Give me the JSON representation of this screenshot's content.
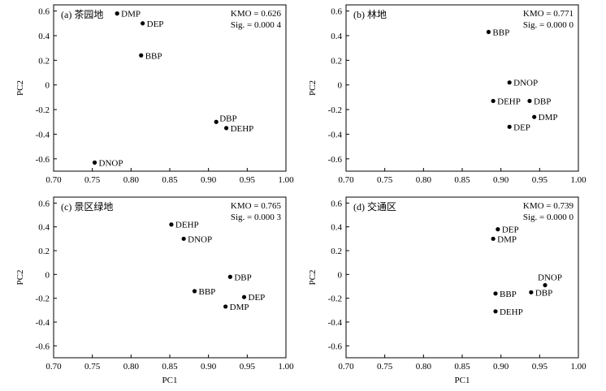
{
  "chart_data": [
    {
      "type": "scatter",
      "title": "(a) 茶园地",
      "kmo": "KMO = 0.626",
      "sig": "Sig. = 0.000 4",
      "xlabel": "",
      "ylabel": "PC2",
      "xlim": [
        0.7,
        1.0
      ],
      "ylim": [
        -0.7,
        0.65
      ],
      "xticks": [
        "0.70",
        "0.75",
        "0.80",
        "0.85",
        "0.90",
        "0.95",
        "1.00"
      ],
      "yticks": [
        "0.6",
        "0.4",
        "0.2",
        "0",
        "-0.2",
        "-0.4",
        "-0.6"
      ],
      "points": [
        {
          "label": "DMP",
          "x": 0.782,
          "y": 0.58,
          "pos": "right"
        },
        {
          "label": "DEP",
          "x": 0.815,
          "y": 0.5,
          "pos": "right"
        },
        {
          "label": "BBP",
          "x": 0.813,
          "y": 0.24,
          "pos": "right"
        },
        {
          "label": "DBP",
          "x": 0.91,
          "y": -0.3,
          "pos": "right-up"
        },
        {
          "label": "DEHP",
          "x": 0.923,
          "y": -0.35,
          "pos": "right"
        },
        {
          "label": "DNOP",
          "x": 0.753,
          "y": -0.63,
          "pos": "right"
        }
      ]
    },
    {
      "type": "scatter",
      "title": "(b) 林地",
      "kmo": "KMO = 0.771",
      "sig": "Sig. = 0.000 0",
      "xlabel": "",
      "ylabel": "PC2",
      "xlim": [
        0.7,
        1.0
      ],
      "ylim": [
        -0.7,
        0.65
      ],
      "xticks": [
        "0.70",
        "0.75",
        "0.80",
        "0.85",
        "0.90",
        "0.95",
        "1.00"
      ],
      "yticks": [
        "0.6",
        "0.4",
        "0.2",
        "0",
        "-0.2",
        "-0.4",
        "-0.6"
      ],
      "points": [
        {
          "label": "BBP",
          "x": 0.884,
          "y": 0.43,
          "pos": "right"
        },
        {
          "label": "DNOP",
          "x": 0.911,
          "y": 0.02,
          "pos": "right"
        },
        {
          "label": "DEHP",
          "x": 0.89,
          "y": -0.13,
          "pos": "right"
        },
        {
          "label": "DBP",
          "x": 0.937,
          "y": -0.13,
          "pos": "right"
        },
        {
          "label": "DMP",
          "x": 0.943,
          "y": -0.26,
          "pos": "right"
        },
        {
          "label": "DEP",
          "x": 0.911,
          "y": -0.34,
          "pos": "right"
        }
      ]
    },
    {
      "type": "scatter",
      "title": "(c) 景区绿地",
      "kmo": "KMO = 0.765",
      "sig": "Sig. = 0.000 3",
      "xlabel": "PC1",
      "ylabel": "PC2",
      "xlim": [
        0.7,
        1.0
      ],
      "ylim": [
        -0.7,
        0.65
      ],
      "xticks": [
        "0.70",
        "0.75",
        "0.80",
        "0.85",
        "0.90",
        "0.95",
        "1.00"
      ],
      "yticks": [
        "0.6",
        "0.4",
        "0.2",
        "0",
        "-0.2",
        "-0.4",
        "-0.6"
      ],
      "points": [
        {
          "label": "DEHP",
          "x": 0.852,
          "y": 0.42,
          "pos": "right"
        },
        {
          "label": "DNOP",
          "x": 0.868,
          "y": 0.3,
          "pos": "right"
        },
        {
          "label": "DBP",
          "x": 0.928,
          "y": -0.02,
          "pos": "right"
        },
        {
          "label": "BBP",
          "x": 0.882,
          "y": -0.14,
          "pos": "right"
        },
        {
          "label": "DEP",
          "x": 0.946,
          "y": -0.19,
          "pos": "right"
        },
        {
          "label": "DMP",
          "x": 0.922,
          "y": -0.27,
          "pos": "right"
        }
      ]
    },
    {
      "type": "scatter",
      "title": "(d) 交通区",
      "kmo": "KMO = 0.739",
      "sig": "Sig. = 0.000 0",
      "xlabel": "PC1",
      "ylabel": "PC2",
      "xlim": [
        0.7,
        1.0
      ],
      "ylim": [
        -0.7,
        0.65
      ],
      "xticks": [
        "0.70",
        "0.75",
        "0.80",
        "0.85",
        "0.90",
        "0.95",
        "1.00"
      ],
      "yticks": [
        "0.6",
        "0.4",
        "0.2",
        "0",
        "-0.2",
        "-0.4",
        "-0.6"
      ],
      "points": [
        {
          "label": "DEP",
          "x": 0.896,
          "y": 0.38,
          "pos": "right"
        },
        {
          "label": "DMP",
          "x": 0.89,
          "y": 0.3,
          "pos": "right"
        },
        {
          "label": "DNOP",
          "x": 0.957,
          "y": -0.09,
          "pos": "above"
        },
        {
          "label": "BBP",
          "x": 0.893,
          "y": -0.16,
          "pos": "right"
        },
        {
          "label": "DBP",
          "x": 0.939,
          "y": -0.15,
          "pos": "right"
        },
        {
          "label": "DEHP",
          "x": 0.893,
          "y": -0.31,
          "pos": "right"
        }
      ]
    }
  ]
}
